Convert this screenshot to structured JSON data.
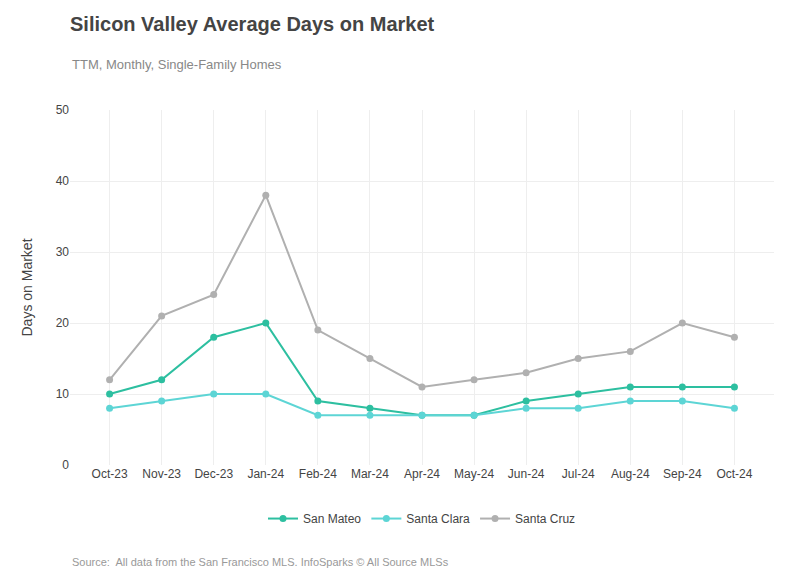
{
  "chart_data": {
    "type": "line",
    "title": "Silicon Valley Average Days on Market",
    "subtitle": "TTM, Monthly, Single-Family Homes",
    "ylabel": "Days on Market",
    "annotations": [
      "Source:  All data from the San Francisco MLS. InfoSparks © All Source MLSs"
    ],
    "categories": [
      "Oct-23",
      "Nov-23",
      "Dec-23",
      "Jan-24",
      "Feb-24",
      "Mar-24",
      "Apr-24",
      "May-24",
      "Jun-24",
      "Jul-24",
      "Aug-24",
      "Sep-24",
      "Oct-24"
    ],
    "series": [
      {
        "name": "San Mateo",
        "color": "#2dbfa0",
        "values": [
          10,
          12,
          18,
          20,
          9,
          8,
          7,
          7,
          9,
          10,
          11,
          11,
          11
        ]
      },
      {
        "name": "Santa Clara",
        "color": "#5dd5d5",
        "values": [
          8,
          9,
          10,
          10,
          7,
          7,
          7,
          7,
          8,
          8,
          9,
          9,
          8
        ]
      },
      {
        "name": "Santa Cruz",
        "color": "#b0b0b0",
        "values": [
          12,
          21,
          24,
          38,
          19,
          15,
          11,
          12,
          13,
          15,
          16,
          20,
          18
        ]
      }
    ],
    "ylim": [
      0,
      50
    ],
    "yticks": [
      0,
      10,
      20,
      30,
      40,
      50
    ],
    "grid": true,
    "legend": "bottom",
    "marker": "circle"
  }
}
